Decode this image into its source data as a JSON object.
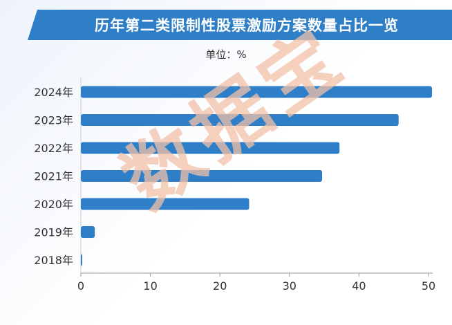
{
  "title": "历年第二类限制性股票激励方案数量占比一览",
  "unit_label": "单位：%",
  "watermark": "数据宝",
  "colors": {
    "bar": "#2f7fc8",
    "title_bg": "#2f7fc8",
    "axis": "#999999"
  },
  "chart_data": {
    "type": "bar",
    "orientation": "horizontal",
    "categories": [
      "2024年",
      "2023年",
      "2022年",
      "2021年",
      "2020年",
      "2019年",
      "2018年"
    ],
    "values": [
      50.5,
      45.7,
      37.2,
      34.7,
      24.2,
      2.0,
      0.2
    ],
    "xlim": [
      0,
      50
    ],
    "xticks": [
      0,
      10,
      20,
      30,
      40,
      50
    ],
    "grid": false,
    "legend": "none"
  }
}
